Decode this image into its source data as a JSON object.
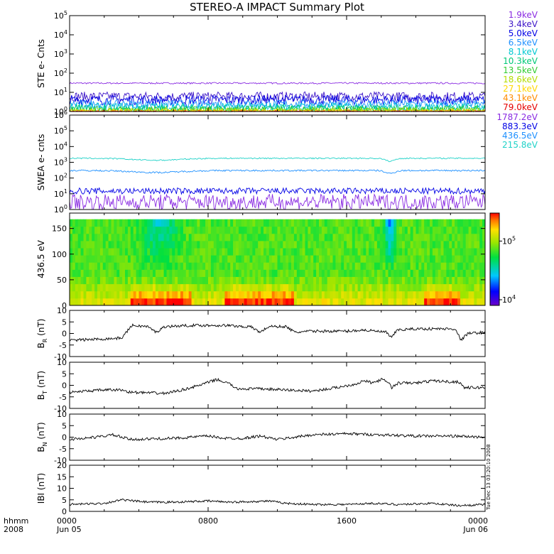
{
  "chart_data": {
    "type": "line",
    "title": "STEREO-A IMPACT Summary Plot",
    "timestamp_vertical": "Tue Dec 13 03:20:10 2008",
    "time_axis": {
      "row1_label": "hhmm",
      "row2_label": "2008",
      "ticks": [
        {
          "hours": 0,
          "label": "0000",
          "sublabel": "Jun 05"
        },
        {
          "hours": 8,
          "label": "0800",
          "sublabel": ""
        },
        {
          "hours": 16,
          "label": "1600",
          "sublabel": ""
        },
        {
          "hours": 24,
          "label": "0000",
          "sublabel": "Jun 06"
        }
      ],
      "range_hours": [
        0,
        24
      ]
    },
    "panels": [
      {
        "id": "ste",
        "ylabel": "STE e- Cnts",
        "scale": "log",
        "ylim": [
          1,
          100000
        ],
        "yticks": [
          {
            "base": "10",
            "exp": "0"
          },
          {
            "base": "10",
            "exp": "1"
          },
          {
            "base": "10",
            "exp": "2"
          },
          {
            "base": "10",
            "exp": "3"
          },
          {
            "base": "10",
            "exp": "4"
          },
          {
            "base": "10",
            "exp": "5"
          }
        ],
        "series": [
          {
            "name": "1.9keV",
            "color": "#8a2be2",
            "level": 30,
            "noise": 0.04
          },
          {
            "name": "3.4keV",
            "color": "#3c14c8",
            "level": 6,
            "noise": 0.25
          },
          {
            "name": "5.0keV",
            "color": "#0000e6",
            "level": 4,
            "noise": 0.25
          },
          {
            "name": "6.5keV",
            "color": "#1e90ff",
            "level": 2.5,
            "noise": 0.2
          },
          {
            "name": "8.1keV",
            "color": "#00c8d2",
            "level": 1.8,
            "noise": 0.2
          },
          {
            "name": "10.3keV",
            "color": "#00c878",
            "level": 1.4,
            "noise": 0.2
          },
          {
            "name": "13.5keV",
            "color": "#32cd32",
            "level": 1.2,
            "noise": 0.2
          },
          {
            "name": "18.6keV",
            "color": "#b4dc00",
            "level": 1.1,
            "noise": 0.15
          },
          {
            "name": "27.1keV",
            "color": "#ffd700",
            "level": 1.05,
            "noise": 0.1
          },
          {
            "name": "43.1keV",
            "color": "#ff8c00",
            "level": 1.02,
            "noise": 0.05
          },
          {
            "name": "79.0keV",
            "color": "#e60000",
            "level": 1.01,
            "noise": 0.03
          }
        ]
      },
      {
        "id": "swea",
        "ylabel": "SWEA e- cnts",
        "scale": "log",
        "ylim": [
          1,
          1000000
        ],
        "yticks": [
          {
            "base": "10",
            "exp": "0"
          },
          {
            "base": "10",
            "exp": "1"
          },
          {
            "base": "10",
            "exp": "2"
          },
          {
            "base": "10",
            "exp": "3"
          },
          {
            "base": "10",
            "exp": "4"
          },
          {
            "base": "10",
            "exp": "5"
          },
          {
            "base": "10",
            "exp": "6"
          }
        ],
        "series": [
          {
            "name": "1787.2eV",
            "color": "#8a2be2",
            "level": 3,
            "noise": 0.5
          },
          {
            "name": "883.3eV",
            "color": "#0000e6",
            "level": 15,
            "noise": 0.2
          },
          {
            "name": "436.5eV",
            "color": "#1e90ff",
            "level": 300,
            "noise": 0.05
          },
          {
            "name": "215.8eV",
            "color": "#20d2c8",
            "level": 1800,
            "noise": 0.04
          }
        ]
      },
      {
        "id": "pad",
        "ylabel": "436.5 eV",
        "type": "heatmap",
        "ylim": [
          0,
          180
        ],
        "yticks": [
          "0",
          "50",
          "100",
          "150"
        ],
        "colorbar": {
          "range": [
            8000,
            300000
          ],
          "ticks": [
            {
              "base": "10",
              "exp": "4",
              "value": 10000
            },
            {
              "base": "10",
              "exp": "5",
              "value": 100000
            }
          ]
        }
      },
      {
        "id": "br",
        "ylabel": "B",
        "ylabel_sub": "R",
        "ylabel_unit": "(nT)",
        "scale": "linear",
        "ylim": [
          -10,
          10
        ],
        "yticks": [
          "-10",
          "-5",
          "0",
          "5",
          "10"
        ],
        "segments": [
          [
            0,
            -3
          ],
          [
            1.5,
            -2.5
          ],
          [
            3,
            -2
          ],
          [
            3.6,
            3.5
          ],
          [
            4.5,
            3
          ],
          [
            5,
            0.5
          ],
          [
            5.5,
            3
          ],
          [
            7,
            3.5
          ],
          [
            9,
            3.5
          ],
          [
            10.5,
            2.8
          ],
          [
            11,
            0.5
          ],
          [
            11.5,
            3
          ],
          [
            12.5,
            3
          ],
          [
            13,
            0.5
          ],
          [
            14,
            1
          ],
          [
            16,
            1
          ],
          [
            17,
            1.5
          ],
          [
            18.3,
            0.5
          ],
          [
            18.6,
            -2
          ],
          [
            18.9,
            1.5
          ],
          [
            20,
            2
          ],
          [
            22.3,
            2
          ],
          [
            22.6,
            -3
          ],
          [
            23,
            0
          ],
          [
            24,
            0.5
          ]
        ]
      },
      {
        "id": "bt",
        "ylabel": "B",
        "ylabel_sub": "T",
        "ylabel_unit": "(nT)",
        "scale": "linear",
        "ylim": [
          -10,
          10
        ],
        "yticks": [
          "-10",
          "-5",
          "0",
          "5",
          "10"
        ],
        "segments": [
          [
            0,
            -3
          ],
          [
            2,
            -2
          ],
          [
            3,
            -2
          ],
          [
            3.5,
            -3
          ],
          [
            5.5,
            -3.5
          ],
          [
            6.5,
            -2
          ],
          [
            7.5,
            0
          ],
          [
            8.5,
            2.5
          ],
          [
            9.3,
            0.5
          ],
          [
            9.6,
            -1.5
          ],
          [
            11,
            -1.5
          ],
          [
            12.5,
            -2
          ],
          [
            14,
            -2.5
          ],
          [
            15,
            -1.5
          ],
          [
            16.5,
            0.5
          ],
          [
            17,
            2
          ],
          [
            17.5,
            1
          ],
          [
            18,
            2.5
          ],
          [
            18.4,
            1.5
          ],
          [
            18.6,
            -1
          ],
          [
            19,
            1
          ],
          [
            20,
            1
          ],
          [
            21,
            2
          ],
          [
            22,
            1.5
          ],
          [
            22.5,
            1.5
          ],
          [
            22.8,
            -1
          ],
          [
            23.3,
            -1
          ],
          [
            24,
            -1
          ]
        ]
      },
      {
        "id": "bn",
        "ylabel": "B",
        "ylabel_sub": "N",
        "ylabel_unit": "(nT)",
        "scale": "linear",
        "ylim": [
          -10,
          10
        ],
        "yticks": [
          "-10",
          "-5",
          "0",
          "5",
          "10"
        ],
        "segments": [
          [
            0,
            -1
          ],
          [
            1.5,
            0
          ],
          [
            2.5,
            1
          ],
          [
            3.5,
            -1
          ],
          [
            6,
            -0.5
          ],
          [
            7,
            0
          ],
          [
            8,
            0.5
          ],
          [
            9,
            -0.5
          ],
          [
            10,
            -0.5
          ],
          [
            11,
            0.5
          ],
          [
            12,
            -1
          ],
          [
            13,
            0
          ],
          [
            14,
            1
          ],
          [
            16,
            1.5
          ],
          [
            18,
            1
          ],
          [
            20,
            0.5
          ],
          [
            22,
            0.5
          ],
          [
            24,
            0
          ]
        ]
      },
      {
        "id": "bmag",
        "ylabel": "IBI",
        "ylabel_unit": "(nT)",
        "scale": "linear",
        "ylim": [
          0,
          20
        ],
        "yticks": [
          "0",
          "5",
          "10",
          "15",
          "20"
        ],
        "segments": [
          [
            0,
            3
          ],
          [
            2,
            3.5
          ],
          [
            3,
            5
          ],
          [
            4.5,
            4
          ],
          [
            6,
            4
          ],
          [
            8,
            4.5
          ],
          [
            9.5,
            4
          ],
          [
            11.5,
            4.5
          ],
          [
            12.5,
            3.5
          ],
          [
            14,
            3
          ],
          [
            16,
            3
          ],
          [
            17.5,
            3.5
          ],
          [
            19,
            3
          ],
          [
            21,
            3.5
          ],
          [
            22.5,
            2.5
          ],
          [
            24,
            3
          ]
        ]
      }
    ]
  }
}
